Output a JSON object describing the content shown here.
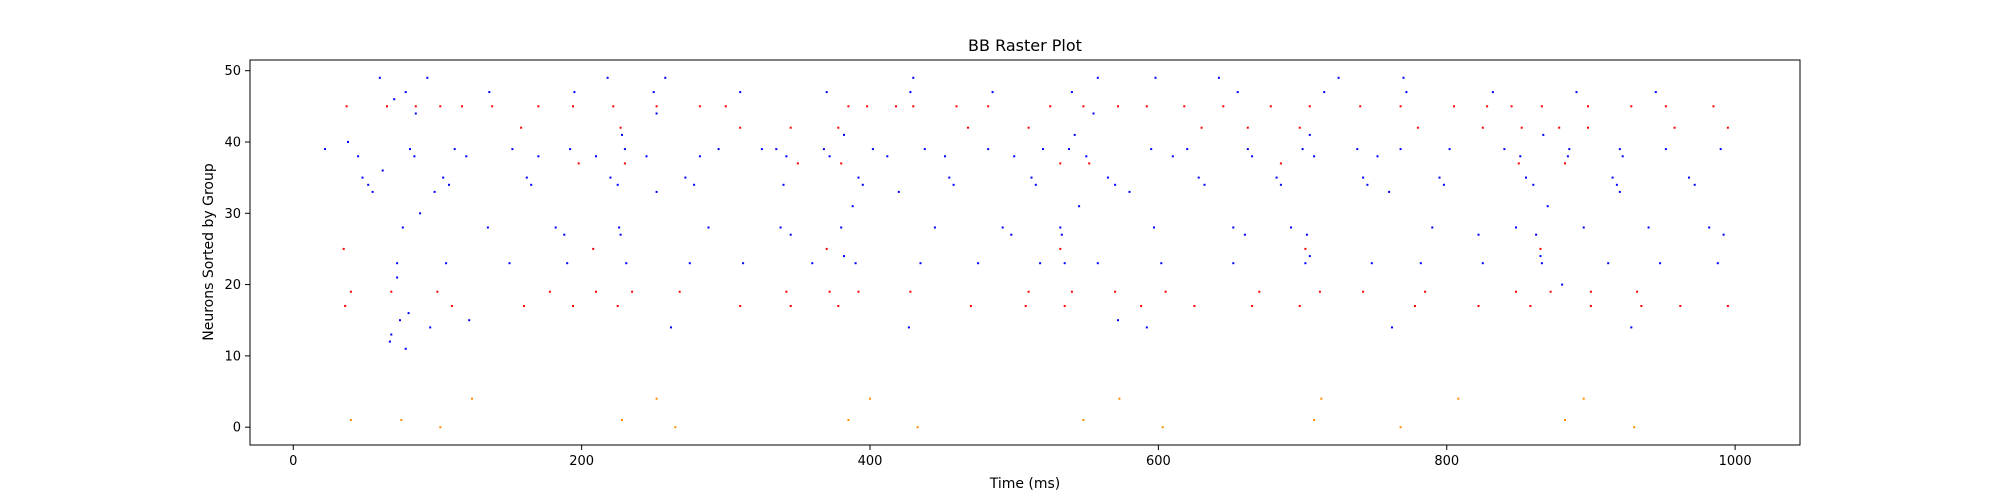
{
  "chart_data": {
    "type": "scatter",
    "title": "BB Raster Plot",
    "xlabel": "Time (ms)",
    "ylabel": "Neurons Sorted by Group",
    "xlim": [
      -30,
      1045
    ],
    "ylim": [
      -2.5,
      51.5
    ],
    "xticks": [
      0,
      200,
      400,
      600,
      800,
      1000
    ],
    "yticks": [
      0,
      10,
      20,
      30,
      40,
      50
    ],
    "grid": false,
    "legend": "none",
    "marker_size": 2,
    "series": [
      {
        "color": "#0000ff",
        "points": [
          [
            22,
            39
          ],
          [
            38,
            40
          ],
          [
            45,
            38
          ],
          [
            48,
            35
          ],
          [
            52,
            34
          ],
          [
            55,
            33
          ],
          [
            60,
            49
          ],
          [
            62,
            36
          ],
          [
            67,
            12
          ],
          [
            68,
            13
          ],
          [
            70,
            46
          ],
          [
            72,
            23
          ],
          [
            72,
            21
          ],
          [
            74,
            15
          ],
          [
            76,
            28
          ],
          [
            78,
            47
          ],
          [
            80,
            16
          ],
          [
            81,
            39
          ],
          [
            78,
            11
          ],
          [
            85,
            44
          ],
          [
            84,
            38
          ],
          [
            88,
            30
          ],
          [
            93,
            49
          ],
          [
            95,
            14
          ],
          [
            98,
            33
          ],
          [
            104,
            35
          ],
          [
            106,
            23
          ],
          [
            108,
            34
          ],
          [
            112,
            39
          ],
          [
            120,
            38
          ],
          [
            122,
            15
          ],
          [
            135,
            28
          ],
          [
            136,
            47
          ],
          [
            150,
            23
          ],
          [
            152,
            39
          ],
          [
            162,
            35
          ],
          [
            165,
            34
          ],
          [
            170,
            38
          ],
          [
            182,
            28
          ],
          [
            188,
            27
          ],
          [
            190,
            23
          ],
          [
            192,
            39
          ],
          [
            195,
            47
          ],
          [
            210,
            38
          ],
          [
            218,
            49
          ],
          [
            220,
            35
          ],
          [
            225,
            34
          ],
          [
            226,
            28
          ],
          [
            227,
            27
          ],
          [
            228,
            41
          ],
          [
            230,
            39
          ],
          [
            231,
            23
          ],
          [
            245,
            38
          ],
          [
            250,
            47
          ],
          [
            252,
            33
          ],
          [
            252,
            44
          ],
          [
            258,
            49
          ],
          [
            262,
            14
          ],
          [
            272,
            35
          ],
          [
            275,
            23
          ],
          [
            278,
            34
          ],
          [
            282,
            38
          ],
          [
            288,
            28
          ],
          [
            295,
            39
          ],
          [
            310,
            47
          ],
          [
            312,
            23
          ],
          [
            325,
            39
          ],
          [
            335,
            39
          ],
          [
            338,
            28
          ],
          [
            340,
            34
          ],
          [
            342,
            38
          ],
          [
            345,
            27
          ],
          [
            360,
            23
          ],
          [
            368,
            39
          ],
          [
            370,
            47
          ],
          [
            372,
            38
          ],
          [
            380,
            28
          ],
          [
            382,
            24
          ],
          [
            382,
            41
          ],
          [
            388,
            31
          ],
          [
            390,
            23
          ],
          [
            392,
            35
          ],
          [
            395,
            34
          ],
          [
            402,
            39
          ],
          [
            412,
            38
          ],
          [
            420,
            33
          ],
          [
            427,
            14
          ],
          [
            428,
            47
          ],
          [
            430,
            49
          ],
          [
            435,
            23
          ],
          [
            438,
            39
          ],
          [
            445,
            28
          ],
          [
            452,
            38
          ],
          [
            455,
            35
          ],
          [
            458,
            34
          ],
          [
            475,
            23
          ],
          [
            482,
            39
          ],
          [
            485,
            47
          ],
          [
            492,
            28
          ],
          [
            498,
            27
          ],
          [
            500,
            38
          ],
          [
            512,
            35
          ],
          [
            515,
            34
          ],
          [
            518,
            23
          ],
          [
            520,
            39
          ],
          [
            532,
            28
          ],
          [
            533,
            27
          ],
          [
            535,
            23
          ],
          [
            538,
            39
          ],
          [
            540,
            47
          ],
          [
            542,
            41
          ],
          [
            545,
            31
          ],
          [
            550,
            38
          ],
          [
            555,
            44
          ],
          [
            558,
            23
          ],
          [
            558,
            49
          ],
          [
            565,
            35
          ],
          [
            570,
            34
          ],
          [
            572,
            15
          ],
          [
            580,
            33
          ],
          [
            592,
            14
          ],
          [
            595,
            39
          ],
          [
            597,
            28
          ],
          [
            598,
            49
          ],
          [
            602,
            23
          ],
          [
            610,
            38
          ],
          [
            620,
            39
          ],
          [
            628,
            35
          ],
          [
            632,
            34
          ],
          [
            642,
            49
          ],
          [
            652,
            28
          ],
          [
            652,
            23
          ],
          [
            655,
            47
          ],
          [
            660,
            27
          ],
          [
            662,
            39
          ],
          [
            665,
            38
          ],
          [
            682,
            35
          ],
          [
            685,
            34
          ],
          [
            692,
            28
          ],
          [
            700,
            39
          ],
          [
            702,
            23
          ],
          [
            703,
            27
          ],
          [
            705,
            24
          ],
          [
            705,
            41
          ],
          [
            708,
            38
          ],
          [
            715,
            47
          ],
          [
            725,
            49
          ],
          [
            738,
            39
          ],
          [
            742,
            35
          ],
          [
            745,
            34
          ],
          [
            748,
            23
          ],
          [
            752,
            38
          ],
          [
            760,
            33
          ],
          [
            762,
            14
          ],
          [
            768,
            39
          ],
          [
            770,
            49
          ],
          [
            772,
            47
          ],
          [
            782,
            23
          ],
          [
            790,
            28
          ],
          [
            795,
            35
          ],
          [
            798,
            34
          ],
          [
            802,
            39
          ],
          [
            822,
            27
          ],
          [
            825,
            23
          ],
          [
            832,
            47
          ],
          [
            840,
            39
          ],
          [
            848,
            28
          ],
          [
            851,
            38
          ],
          [
            855,
            35
          ],
          [
            860,
            34
          ],
          [
            862,
            27
          ],
          [
            865,
            24
          ],
          [
            866,
            23
          ],
          [
            867,
            41
          ],
          [
            870,
            31
          ],
          [
            880,
            20
          ],
          [
            884,
            38
          ],
          [
            885,
            39
          ],
          [
            890,
            47
          ],
          [
            895,
            28
          ],
          [
            912,
            23
          ],
          [
            915,
            35
          ],
          [
            918,
            34
          ],
          [
            920,
            39
          ],
          [
            920,
            33
          ],
          [
            922,
            38
          ],
          [
            928,
            14
          ],
          [
            940,
            28
          ],
          [
            945,
            47
          ],
          [
            948,
            23
          ],
          [
            952,
            39
          ],
          [
            968,
            35
          ],
          [
            972,
            34
          ],
          [
            982,
            28
          ],
          [
            990,
            39
          ],
          [
            992,
            27
          ],
          [
            988,
            23
          ]
        ]
      },
      {
        "color": "#ff0000",
        "points": [
          [
            35,
            25
          ],
          [
            36,
            17
          ],
          [
            37,
            45
          ],
          [
            40,
            19
          ],
          [
            65,
            45
          ],
          [
            68,
            19
          ],
          [
            85,
            45
          ],
          [
            100,
            19
          ],
          [
            102,
            45
          ],
          [
            110,
            17
          ],
          [
            117,
            45
          ],
          [
            138,
            45
          ],
          [
            158,
            42
          ],
          [
            160,
            17
          ],
          [
            170,
            45
          ],
          [
            178,
            19
          ],
          [
            194,
            17
          ],
          [
            194,
            45
          ],
          [
            198,
            37
          ],
          [
            208,
            25
          ],
          [
            210,
            19
          ],
          [
            222,
            45
          ],
          [
            225,
            17
          ],
          [
            227,
            42
          ],
          [
            230,
            37
          ],
          [
            235,
            19
          ],
          [
            252,
            45
          ],
          [
            268,
            19
          ],
          [
            282,
            45
          ],
          [
            300,
            45
          ],
          [
            310,
            42
          ],
          [
            310,
            17
          ],
          [
            342,
            19
          ],
          [
            345,
            17
          ],
          [
            345,
            42
          ],
          [
            350,
            37
          ],
          [
            370,
            25
          ],
          [
            372,
            19
          ],
          [
            378,
            17
          ],
          [
            378,
            42
          ],
          [
            380,
            37
          ],
          [
            385,
            45
          ],
          [
            392,
            19
          ],
          [
            398,
            45
          ],
          [
            418,
            45
          ],
          [
            428,
            19
          ],
          [
            430,
            45
          ],
          [
            460,
            45
          ],
          [
            468,
            42
          ],
          [
            470,
            17
          ],
          [
            482,
            45
          ],
          [
            510,
            19
          ],
          [
            508,
            17
          ],
          [
            510,
            42
          ],
          [
            525,
            45
          ],
          [
            532,
            37
          ],
          [
            532,
            25
          ],
          [
            535,
            17
          ],
          [
            540,
            19
          ],
          [
            548,
            45
          ],
          [
            552,
            37
          ],
          [
            570,
            19
          ],
          [
            572,
            45
          ],
          [
            588,
            17
          ],
          [
            592,
            45
          ],
          [
            605,
            19
          ],
          [
            618,
            45
          ],
          [
            625,
            17
          ],
          [
            630,
            42
          ],
          [
            645,
            45
          ],
          [
            662,
            42
          ],
          [
            665,
            17
          ],
          [
            670,
            19
          ],
          [
            678,
            45
          ],
          [
            685,
            37
          ],
          [
            698,
            17
          ],
          [
            698,
            42
          ],
          [
            702,
            25
          ],
          [
            705,
            45
          ],
          [
            712,
            19
          ],
          [
            740,
            45
          ],
          [
            742,
            19
          ],
          [
            768,
            45
          ],
          [
            778,
            17
          ],
          [
            780,
            42
          ],
          [
            785,
            19
          ],
          [
            805,
            45
          ],
          [
            822,
            17
          ],
          [
            825,
            42
          ],
          [
            828,
            45
          ],
          [
            845,
            45
          ],
          [
            848,
            19
          ],
          [
            850,
            37
          ],
          [
            852,
            42
          ],
          [
            858,
            17
          ],
          [
            865,
            25
          ],
          [
            866,
            45
          ],
          [
            872,
            19
          ],
          [
            878,
            42
          ],
          [
            882,
            37
          ],
          [
            898,
            45
          ],
          [
            898,
            42
          ],
          [
            900,
            17
          ],
          [
            900,
            19
          ],
          [
            928,
            45
          ],
          [
            932,
            19
          ],
          [
            935,
            17
          ],
          [
            952,
            45
          ],
          [
            958,
            42
          ],
          [
            962,
            17
          ],
          [
            985,
            45
          ],
          [
            995,
            42
          ],
          [
            995,
            17
          ]
        ]
      },
      {
        "color": "#ff8c00",
        "points": [
          [
            40,
            1
          ],
          [
            75,
            1
          ],
          [
            102,
            0
          ],
          [
            124,
            4
          ],
          [
            228,
            1
          ],
          [
            252,
            4
          ],
          [
            265,
            0
          ],
          [
            385,
            1
          ],
          [
            400,
            4
          ],
          [
            433,
            0
          ],
          [
            548,
            1
          ],
          [
            573,
            4
          ],
          [
            603,
            0
          ],
          [
            708,
            1
          ],
          [
            713,
            4
          ],
          [
            768,
            0
          ],
          [
            808,
            4
          ],
          [
            882,
            1
          ],
          [
            895,
            4
          ],
          [
            930,
            0
          ]
        ]
      }
    ]
  }
}
